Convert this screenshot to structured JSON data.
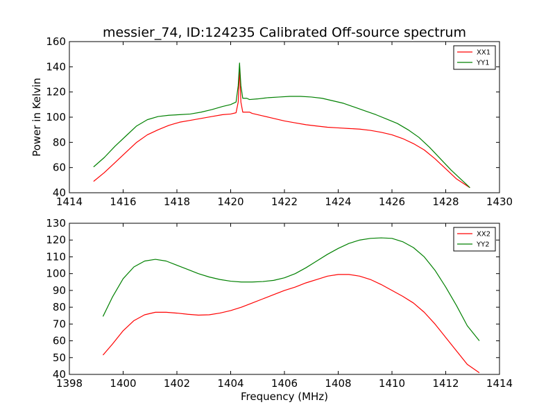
{
  "figure": {
    "title": "messier_74, ID:124235 Calibrated Off-source spectrum",
    "xlabel": "Frequency (MHz)"
  },
  "chart_data": [
    {
      "type": "line",
      "title": "messier_74, ID:124235 Calibrated Off-source spectrum",
      "xlabel": "",
      "ylabel": "Power in Kelvin",
      "xlim": [
        1414,
        1430
      ],
      "ylim": [
        40,
        160
      ],
      "xticks": [
        1414,
        1416,
        1418,
        1420,
        1422,
        1424,
        1426,
        1428,
        1430
      ],
      "yticks": [
        40,
        60,
        80,
        100,
        120,
        140,
        160
      ],
      "grid": false,
      "legend": "top-right",
      "series": [
        {
          "name": "XX1",
          "color": "#ff0000",
          "points": [
            [
              1414.9,
              49
            ],
            [
              1415.3,
              56
            ],
            [
              1415.7,
              64
            ],
            [
              1416.1,
              72
            ],
            [
              1416.5,
              80
            ],
            [
              1416.9,
              86
            ],
            [
              1417.3,
              90
            ],
            [
              1417.7,
              93.5
            ],
            [
              1418.1,
              96
            ],
            [
              1418.5,
              97.5
            ],
            [
              1418.9,
              99
            ],
            [
              1419.3,
              100.5
            ],
            [
              1419.7,
              102
            ],
            [
              1420.0,
              102.5
            ],
            [
              1420.2,
              103.5
            ],
            [
              1420.28,
              112
            ],
            [
              1420.33,
              139
            ],
            [
              1420.38,
              112
            ],
            [
              1420.45,
              104
            ],
            [
              1420.55,
              104
            ],
            [
              1420.7,
              104
            ],
            [
              1420.8,
              103
            ],
            [
              1421.2,
              101
            ],
            [
              1421.6,
              99
            ],
            [
              1422.0,
              97
            ],
            [
              1422.4,
              95.5
            ],
            [
              1422.8,
              94
            ],
            [
              1423.2,
              93
            ],
            [
              1423.6,
              92
            ],
            [
              1424.0,
              91.5
            ],
            [
              1424.4,
              91
            ],
            [
              1424.8,
              90.5
            ],
            [
              1425.2,
              89.5
            ],
            [
              1425.6,
              88
            ],
            [
              1426.0,
              86
            ],
            [
              1426.4,
              83
            ],
            [
              1426.8,
              79
            ],
            [
              1427.2,
              74
            ],
            [
              1427.6,
              67
            ],
            [
              1428.0,
              59
            ],
            [
              1428.4,
              51
            ],
            [
              1428.9,
              44
            ]
          ]
        },
        {
          "name": "YY1",
          "color": "#008000",
          "points": [
            [
              1414.9,
              60.5
            ],
            [
              1415.3,
              68
            ],
            [
              1415.7,
              77
            ],
            [
              1416.1,
              85
            ],
            [
              1416.5,
              93
            ],
            [
              1416.9,
              98
            ],
            [
              1417.3,
              100.5
            ],
            [
              1417.7,
              101.5
            ],
            [
              1418.1,
              102
            ],
            [
              1418.5,
              102.5
            ],
            [
              1418.9,
              104
            ],
            [
              1419.3,
              106
            ],
            [
              1419.7,
              108.5
            ],
            [
              1420.0,
              110
            ],
            [
              1420.2,
              112
            ],
            [
              1420.28,
              125
            ],
            [
              1420.33,
              143
            ],
            [
              1420.38,
              125
            ],
            [
              1420.45,
              115
            ],
            [
              1420.6,
              115
            ],
            [
              1420.7,
              114
            ],
            [
              1421.0,
              114.5
            ],
            [
              1421.4,
              115.5
            ],
            [
              1421.8,
              116
            ],
            [
              1422.2,
              116.5
            ],
            [
              1422.6,
              116.5
            ],
            [
              1423.0,
              116
            ],
            [
              1423.4,
              115
            ],
            [
              1423.8,
              113
            ],
            [
              1424.2,
              111
            ],
            [
              1424.6,
              108
            ],
            [
              1425.0,
              105
            ],
            [
              1425.4,
              102
            ],
            [
              1425.8,
              98.5
            ],
            [
              1426.2,
              95
            ],
            [
              1426.6,
              90
            ],
            [
              1427.0,
              84
            ],
            [
              1427.4,
              76
            ],
            [
              1427.8,
              67
            ],
            [
              1428.2,
              58
            ],
            [
              1428.6,
              50
            ],
            [
              1428.9,
              44
            ]
          ]
        }
      ]
    },
    {
      "type": "line",
      "title": "",
      "xlabel": "Frequency (MHz)",
      "ylabel": "",
      "xlim": [
        1398,
        1414
      ],
      "ylim": [
        40,
        130
      ],
      "xticks": [
        1398,
        1400,
        1402,
        1404,
        1406,
        1408,
        1410,
        1412,
        1414
      ],
      "yticks": [
        40,
        50,
        60,
        70,
        80,
        90,
        100,
        110,
        120,
        130
      ],
      "grid": false,
      "legend": "top-right",
      "series": [
        {
          "name": "XX2",
          "color": "#ff0000",
          "points": [
            [
              1399.25,
              51.5
            ],
            [
              1399.6,
              58
            ],
            [
              1400.0,
              66
            ],
            [
              1400.4,
              72
            ],
            [
              1400.8,
              75.5
            ],
            [
              1401.2,
              77
            ],
            [
              1401.6,
              77
            ],
            [
              1402.0,
              76.5
            ],
            [
              1402.4,
              75.8
            ],
            [
              1402.8,
              75.3
            ],
            [
              1403.2,
              75.5
            ],
            [
              1403.6,
              76.5
            ],
            [
              1404.0,
              78
            ],
            [
              1404.4,
              80
            ],
            [
              1404.8,
              82.5
            ],
            [
              1405.2,
              85
            ],
            [
              1405.6,
              87.5
            ],
            [
              1406.0,
              90
            ],
            [
              1406.4,
              92
            ],
            [
              1406.8,
              94.5
            ],
            [
              1407.2,
              96.5
            ],
            [
              1407.6,
              98.5
            ],
            [
              1408.0,
              99.5
            ],
            [
              1408.4,
              99.5
            ],
            [
              1408.8,
              98.5
            ],
            [
              1409.2,
              96.5
            ],
            [
              1409.6,
              93.5
            ],
            [
              1410.0,
              90
            ],
            [
              1410.4,
              86.5
            ],
            [
              1410.8,
              82.5
            ],
            [
              1411.2,
              77
            ],
            [
              1411.6,
              70
            ],
            [
              1412.0,
              62
            ],
            [
              1412.4,
              54
            ],
            [
              1412.8,
              46
            ],
            [
              1413.25,
              41
            ]
          ]
        },
        {
          "name": "YY2",
          "color": "#008000",
          "points": [
            [
              1399.25,
              74.5
            ],
            [
              1399.6,
              86
            ],
            [
              1400.0,
              97
            ],
            [
              1400.4,
              104
            ],
            [
              1400.8,
              107.5
            ],
            [
              1401.2,
              108.5
            ],
            [
              1401.6,
              107.5
            ],
            [
              1402.0,
              105
            ],
            [
              1402.4,
              102.5
            ],
            [
              1402.8,
              100
            ],
            [
              1403.2,
              98
            ],
            [
              1403.6,
              96.5
            ],
            [
              1404.0,
              95.5
            ],
            [
              1404.4,
              95
            ],
            [
              1404.8,
              95
            ],
            [
              1405.2,
              95.3
            ],
            [
              1405.6,
              96
            ],
            [
              1406.0,
              97.5
            ],
            [
              1406.4,
              100
            ],
            [
              1406.8,
              103.5
            ],
            [
              1407.2,
              107.5
            ],
            [
              1407.6,
              111.5
            ],
            [
              1408.0,
              115
            ],
            [
              1408.4,
              118
            ],
            [
              1408.8,
              120
            ],
            [
              1409.2,
              121
            ],
            [
              1409.6,
              121.3
            ],
            [
              1410.0,
              121
            ],
            [
              1410.4,
              119
            ],
            [
              1410.8,
              115.5
            ],
            [
              1411.2,
              110
            ],
            [
              1411.6,
              102
            ],
            [
              1412.0,
              92
            ],
            [
              1412.4,
              81
            ],
            [
              1412.8,
              69
            ],
            [
              1413.25,
              60
            ]
          ]
        }
      ]
    }
  ]
}
